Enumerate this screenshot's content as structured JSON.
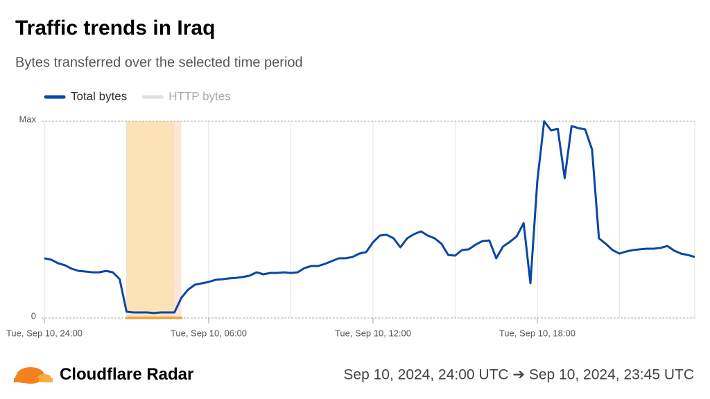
{
  "chart_data": {
    "type": "line",
    "title": "Traffic trends in Iraq",
    "subtitle": "Bytes transferred over the selected time period",
    "series": [
      {
        "name": "Total bytes",
        "color": "#0a46a5",
        "values": [
          30.3,
          29.6,
          27.8,
          26.8,
          25,
          23.9,
          23.6,
          23.2,
          23.2,
          23.9,
          23.2,
          19.7,
          3.2,
          2.8,
          2.8,
          2.8,
          2.5,
          2.8,
          2.8,
          2.8,
          10.2,
          14.4,
          16.9,
          17.6,
          18.3,
          19.4,
          19.7,
          20.1,
          20.4,
          20.8,
          21.5,
          23.2,
          22.2,
          22.9,
          22.9,
          23.2,
          22.9,
          23.2,
          25.4,
          26.4,
          26.4,
          27.5,
          28.9,
          30.3,
          30.3,
          31,
          32.7,
          33.5,
          38.4,
          41.9,
          42.3,
          40.5,
          35.9,
          40.5,
          42.6,
          44,
          41.9,
          40.5,
          37.7,
          32,
          31.7,
          34.5,
          34.9,
          37.3,
          39.1,
          39.4,
          30.3,
          36.3,
          38.7,
          41.5,
          48.2,
          17.6,
          69.4,
          100,
          95.4,
          96.1,
          71.1,
          97.5,
          96.5,
          95.8,
          85.6,
          40.5,
          37.7,
          34.5,
          32.7,
          33.8,
          34.5,
          34.9,
          35.2,
          35.2,
          35.6,
          36.6,
          34.2,
          32.7,
          32,
          31
        ]
      }
    ],
    "inactive_series": [
      {
        "name": "HTTP bytes",
        "color": "#dedede"
      }
    ],
    "x": [
      0,
      15,
      30,
      45,
      60,
      75,
      90,
      105,
      120,
      135,
      150,
      165,
      180,
      195,
      210,
      225,
      240,
      255,
      270,
      285,
      300,
      315,
      330,
      345,
      360,
      375,
      390,
      405,
      420,
      435,
      450,
      465,
      480,
      495,
      510,
      525,
      540,
      555,
      570,
      585,
      600,
      615,
      630,
      645,
      660,
      675,
      690,
      705,
      720,
      735,
      750,
      765,
      780,
      795,
      810,
      825,
      840,
      855,
      870,
      885,
      900,
      915,
      930,
      945,
      960,
      975,
      990,
      1005,
      1020,
      1035,
      1050,
      1065,
      1080,
      1095,
      1110,
      1125,
      1140,
      1155,
      1170,
      1185,
      1200,
      1215,
      1230,
      1245,
      1260,
      1275,
      1290,
      1305,
      1320,
      1335,
      1350,
      1365,
      1380,
      1395,
      1410,
      1425
    ],
    "xlim": [
      0,
      1425
    ],
    "xticks": [
      {
        "value": 0,
        "label": "Tue, Sep 10, 24:00"
      },
      {
        "value": 360,
        "label": "Tue, Sep 10, 06:00"
      },
      {
        "value": 720,
        "label": "Tue, Sep 10, 12:00"
      },
      {
        "value": 1080,
        "label": "Tue, Sep 10, 18:00"
      }
    ],
    "xminor": [
      180,
      540,
      900,
      1260
    ],
    "ylim": [
      0,
      100
    ],
    "yticks": [
      0,
      {
        "value": 100,
        "label": "Max"
      }
    ],
    "highlights": [
      {
        "start": 180,
        "end": 285,
        "color": "#fde2b8"
      },
      {
        "start": 285,
        "end": 300,
        "color": "#fde5d8"
      }
    ],
    "highlight_bar_color": "#f6a83a",
    "brand": "Cloudflare Radar",
    "date_range": "Sep 10, 2024, 24:00 UTC ➔ Sep 10, 2024, 23:45 UTC"
  }
}
